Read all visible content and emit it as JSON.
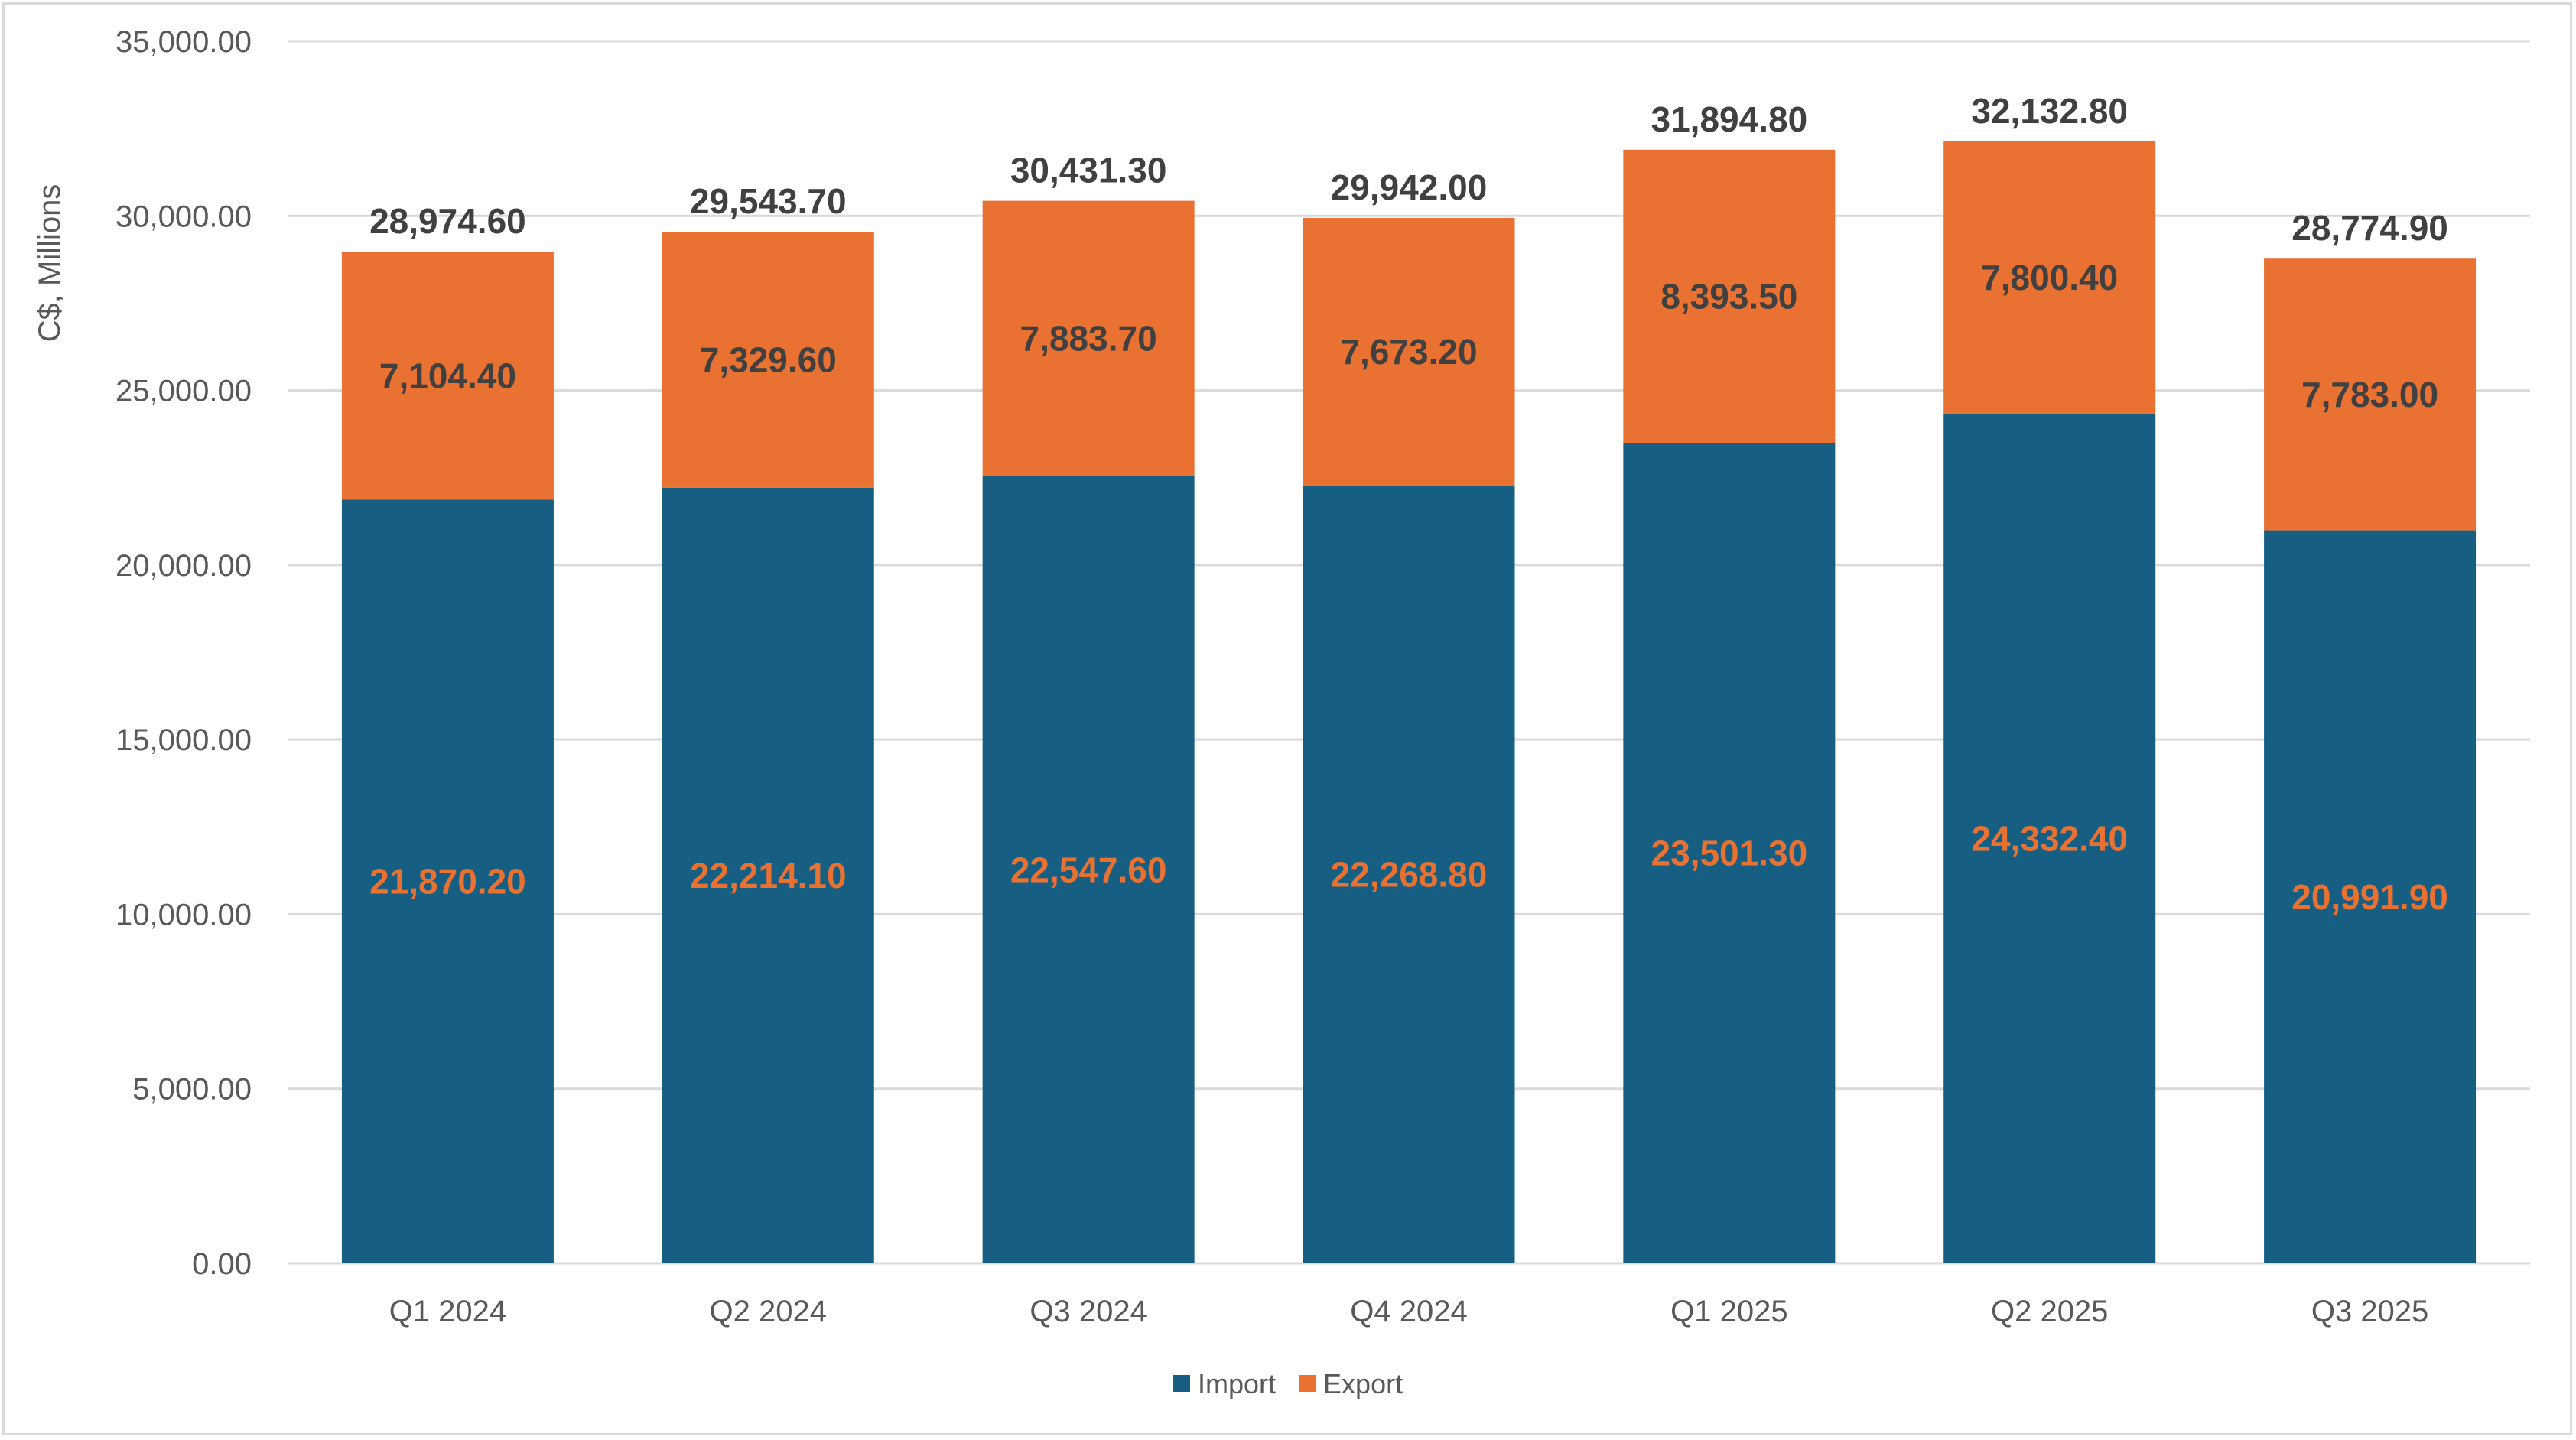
{
  "chart_data": {
    "type": "bar",
    "stacked": true,
    "categories": [
      "Q1 2024",
      "Q2 2024",
      "Q3 2024",
      "Q4 2024",
      "Q1 2025",
      "Q2 2025",
      "Q3 2025"
    ],
    "series": [
      {
        "name": "Import",
        "color": "#175f82",
        "label_color": "#e97132",
        "values": [
          21870.2,
          22214.1,
          22547.6,
          22268.8,
          23501.3,
          24332.4,
          20991.9
        ],
        "labels": [
          "21,870.20",
          "22,214.10",
          "22,547.60",
          "22,268.80",
          "23,501.30",
          "24,332.40",
          "20,991.90"
        ]
      },
      {
        "name": "Export",
        "color": "#e97132",
        "label_color": "#404040",
        "values": [
          7104.4,
          7329.6,
          7883.7,
          7673.2,
          8393.5,
          7800.4,
          7783.0
        ],
        "labels": [
          "7,104.40",
          "7,329.60",
          "7,883.70",
          "7,673.20",
          "8,393.50",
          "7,800.40",
          "7,783.00"
        ]
      }
    ],
    "totals": [
      28974.6,
      29543.7,
      30431.3,
      29942.0,
      31894.8,
      32132.8,
      28774.9
    ],
    "total_labels": [
      "28,974.60",
      "29,543.70",
      "30,431.30",
      "29,942.00",
      "31,894.80",
      "32,132.80",
      "28,774.90"
    ],
    "title": "",
    "xlabel": "",
    "ylabel": "C$, Millions",
    "ylim": [
      0,
      35000
    ],
    "yticks": [
      0,
      5000,
      10000,
      15000,
      20000,
      25000,
      30000,
      35000
    ],
    "ytick_labels": [
      "0.00",
      "5,000.00",
      "10,000.00",
      "15,000.00",
      "20,000.00",
      "25,000.00",
      "30,000.00",
      "35,000.00"
    ],
    "grid": true,
    "legend_position": "bottom"
  }
}
